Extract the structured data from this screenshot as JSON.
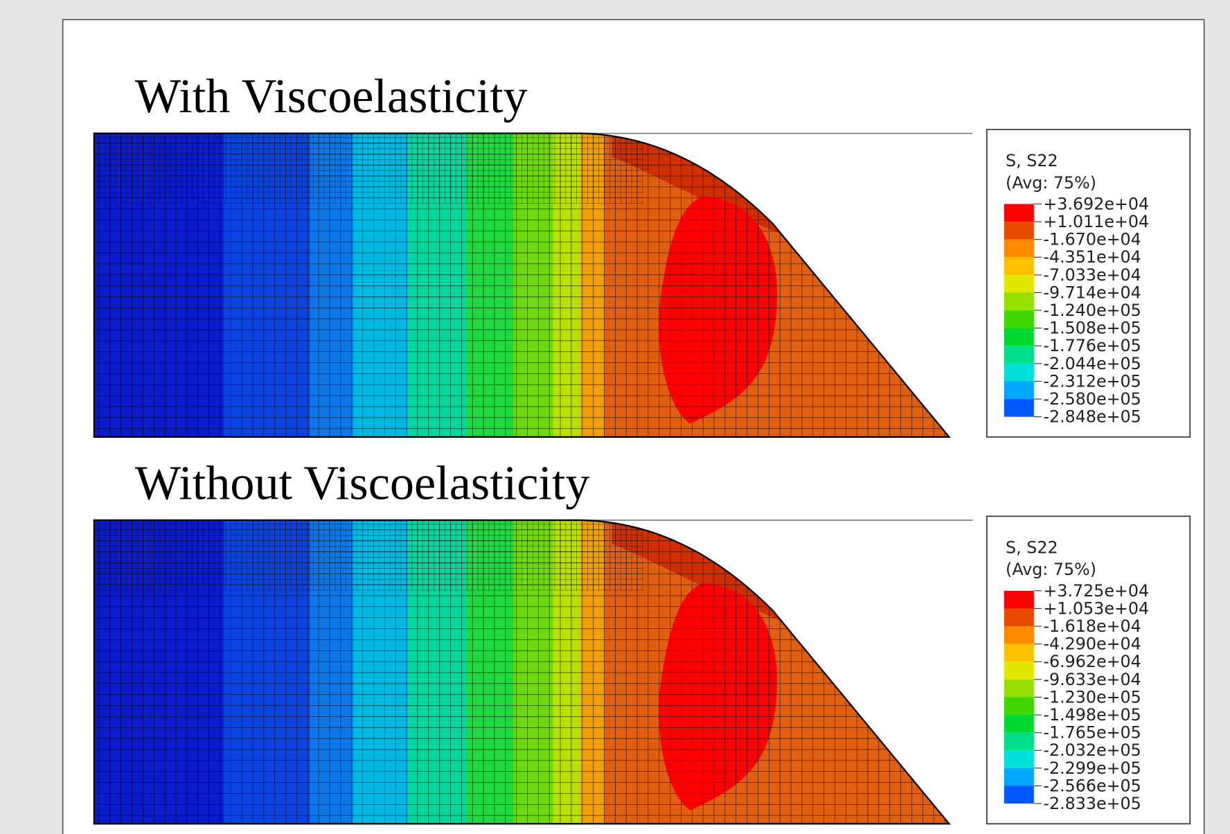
{
  "panels": [
    {
      "title": "With Viscoelasticity",
      "legend": {
        "variable": "S, S22",
        "averaging": "(Avg: 75%)",
        "labels": [
          "+3.692e+04",
          "+1.011e+04",
          "-1.670e+04",
          "-4.351e+04",
          "-7.033e+04",
          "-9.714e+04",
          "-1.240e+05",
          "-1.508e+05",
          "-1.776e+05",
          "-2.044e+05",
          "-2.312e+05",
          "-2.580e+05",
          "-2.848e+05"
        ]
      }
    },
    {
      "title": "Without Viscoelasticity",
      "legend": {
        "variable": "S, S22",
        "averaging": "(Avg: 75%)",
        "labels": [
          "+3.725e+04",
          "+1.053e+04",
          "-1.618e+04",
          "-4.290e+04",
          "-6.962e+04",
          "-9.633e+04",
          "-1.230e+05",
          "-1.498e+05",
          "-1.765e+05",
          "-2.032e+05",
          "-2.299e+05",
          "-2.566e+05",
          "-2.833e+05"
        ]
      }
    }
  ]
}
